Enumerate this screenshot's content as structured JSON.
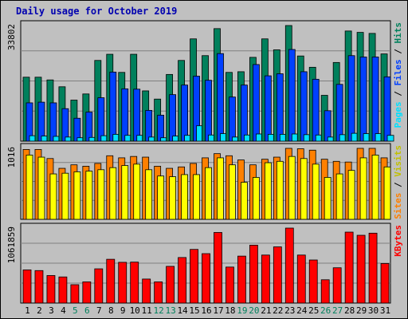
{
  "title": "Daily usage for October 2019",
  "colors": {
    "hits": "#00805c",
    "files": "#0040ff",
    "pages": "#00e0ff",
    "visits": "#ffff00",
    "sites": "#ff8000",
    "kbytes": "#ff0000",
    "weekday_label": "#000000",
    "weekend_label": "#00805c"
  },
  "chart_data": [
    {
      "type": "bar",
      "panel": "top",
      "ymax_label": "33802",
      "ymax": 33802,
      "legend": [
        {
          "text": "Pages",
          "color": "#00e0ff"
        },
        {
          "text": " / ",
          "color": "#000000"
        },
        {
          "text": "Files",
          "color": "#0040ff"
        },
        {
          "text": " / ",
          "color": "#000000"
        },
        {
          "text": "Hits",
          "color": "#00805c"
        }
      ],
      "series": [
        {
          "name": "Hits",
          "color": "#00805c",
          "values": [
            18700,
            18700,
            17900,
            15900,
            12000,
            13800,
            23600,
            25400,
            20100,
            25400,
            14700,
            12300,
            19500,
            23600,
            29900,
            25000,
            32900,
            20100,
            20300,
            24500,
            29900,
            26700,
            33802,
            24900,
            21600,
            13400,
            23000,
            32200,
            31800,
            31500,
            25500
          ]
        },
        {
          "name": "Files",
          "color": "#0040ff",
          "values": [
            11200,
            11400,
            11200,
            9500,
            6700,
            8500,
            12700,
            20200,
            15300,
            15200,
            9000,
            7600,
            13600,
            16400,
            19000,
            17800,
            25600,
            12900,
            16400,
            22400,
            19100,
            19700,
            26800,
            20300,
            18100,
            8900,
            16600,
            25000,
            24600,
            24600,
            18800
          ]
        },
        {
          "name": "Pages",
          "color": "#00e0ff",
          "values": [
            1600,
            1500,
            1400,
            1200,
            1000,
            1100,
            1600,
            2000,
            1700,
            1700,
            1200,
            1000,
            1500,
            1700,
            4500,
            1800,
            2200,
            1200,
            1800,
            2100,
            2000,
            2000,
            2100,
            1900,
            1800,
            1200,
            1900,
            2300,
            2200,
            2200,
            1700
          ]
        }
      ]
    },
    {
      "type": "bar",
      "panel": "middle",
      "ymax_label": "1016",
      "ymax": 1016,
      "legend": [
        {
          "text": "Sites",
          "color": "#ff8000"
        },
        {
          "text": " / ",
          "color": "#000000"
        },
        {
          "text": "Visits",
          "color": "#c0c000"
        }
      ],
      "series": [
        {
          "name": "Sites",
          "color": "#ff8000",
          "values": [
            1000,
            1000,
            870,
            730,
            780,
            760,
            800,
            910,
            880,
            900,
            890,
            760,
            730,
            750,
            800,
            880,
            940,
            910,
            850,
            780,
            860,
            890,
            1016,
            1010,
            990,
            860,
            830,
            820,
            1016,
            1016,
            880
          ]
        },
        {
          "name": "Visits",
          "color": "#ffff00",
          "values": [
            920,
            890,
            650,
            660,
            680,
            690,
            710,
            740,
            770,
            790,
            710,
            620,
            610,
            640,
            640,
            740,
            880,
            780,
            530,
            600,
            810,
            830,
            900,
            870,
            790,
            600,
            650,
            700,
            880,
            920,
            750
          ]
        }
      ]
    },
    {
      "type": "bar",
      "panel": "bottom",
      "ymax_label": "1061859",
      "ymax": 1061859,
      "legend": [
        {
          "text": "KBytes",
          "color": "#ff0000"
        }
      ],
      "series": [
        {
          "name": "KBytes",
          "color": "#ff0000",
          "values": [
            470000,
            460000,
            390000,
            370000,
            260000,
            300000,
            485000,
            620000,
            577000,
            580000,
            340000,
            300000,
            520000,
            645000,
            760000,
            700000,
            1000000,
            510000,
            665000,
            820000,
            680000,
            796000,
            1061859,
            680000,
            610000,
            330000,
            500000,
            1005000,
            960000,
            990000,
            560000
          ]
        }
      ]
    }
  ],
  "x_labels": [
    "1",
    "2",
    "3",
    "4",
    "5",
    "6",
    "7",
    "8",
    "9",
    "10",
    "11",
    "12",
    "13",
    "14",
    "15",
    "16",
    "17",
    "18",
    "19",
    "20",
    "21",
    "22",
    "23",
    "24",
    "25",
    "26",
    "27",
    "28",
    "29",
    "30",
    "31"
  ],
  "weekend_days": [
    5,
    6,
    12,
    13,
    19,
    20,
    26,
    27
  ]
}
